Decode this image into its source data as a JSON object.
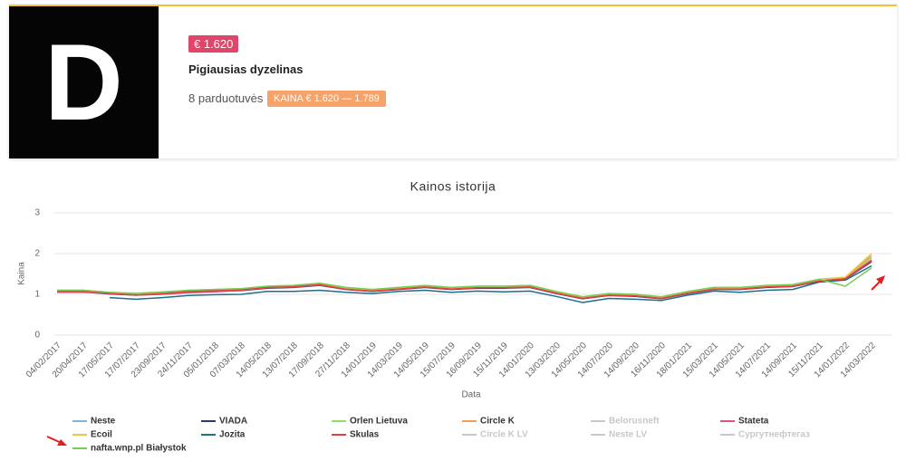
{
  "card": {
    "logo_letter": "D",
    "price_badge": "€ 1.620",
    "title": "Pigiausias dyzelinas",
    "stores": "8 parduotuvės",
    "range_badge": "KAINA € 1.620 — 1.789"
  },
  "chart_data": {
    "type": "line",
    "title": "Kainos istorija",
    "y_label": "Kaina",
    "x_label": "Data",
    "categories": [
      "04/02/2017",
      "20/04/2017",
      "17/05/2017",
      "17/07/2017",
      "23/09/2017",
      "24/11/2017",
      "05/01/2018",
      "07/03/2018",
      "14/05/2018",
      "13/07/2018",
      "17/09/2018",
      "27/11/2018",
      "14/01/2019",
      "14/03/2019",
      "14/05/2019",
      "15/07/2019",
      "16/09/2019",
      "15/11/2019",
      "14/01/2020",
      "13/03/2020",
      "14/05/2020",
      "14/07/2020",
      "14/09/2020",
      "16/11/2020",
      "18/01/2021",
      "15/03/2021",
      "14/05/2021",
      "14/07/2021",
      "14/09/2021",
      "15/11/2021",
      "14/01/2022",
      "14/03/2022"
    ],
    "ylim": [
      0,
      3
    ],
    "yticks": [
      0,
      1,
      2,
      3
    ],
    "grid": true,
    "series": [
      {
        "name": "Neste",
        "color": "#7fb2e0",
        "values": [
          1.07,
          1.07,
          1.02,
          0.99,
          1.02,
          1.07,
          1.09,
          1.11,
          1.17,
          1.19,
          1.24,
          1.14,
          1.09,
          1.14,
          1.19,
          1.14,
          1.17,
          1.17,
          1.19,
          1.04,
          0.91,
          0.99,
          0.97,
          0.91,
          1.04,
          1.14,
          1.14,
          1.19,
          1.21,
          1.34,
          1.39,
          1.84
        ]
      },
      {
        "name": "VIADA",
        "color": "#2b3a67",
        "values": [
          1.06,
          1.06,
          1.01,
          0.98,
          1.01,
          1.05,
          1.07,
          1.09,
          1.15,
          1.17,
          1.22,
          1.12,
          1.07,
          1.12,
          1.17,
          1.12,
          1.15,
          1.15,
          1.17,
          1.02,
          0.89,
          0.97,
          0.95,
          0.89,
          1.02,
          1.12,
          1.12,
          1.17,
          1.19,
          1.32,
          1.37,
          1.8
        ]
      },
      {
        "name": "Orlen Lietuva",
        "color": "#8fdc6a",
        "values": [
          1.1,
          1.1,
          1.05,
          1.03,
          1.06,
          1.1,
          1.12,
          1.14,
          1.2,
          1.22,
          1.27,
          1.17,
          1.12,
          1.17,
          1.22,
          1.17,
          1.2,
          1.2,
          1.22,
          1.07,
          0.94,
          1.02,
          1.0,
          0.94,
          1.07,
          1.17,
          1.17,
          1.22,
          1.24,
          1.37,
          1.42,
          1.9
        ]
      },
      {
        "name": "Circle K",
        "color": "#f0a050",
        "values": [
          1.09,
          1.09,
          1.04,
          1.02,
          1.05,
          1.09,
          1.11,
          1.13,
          1.19,
          1.21,
          1.26,
          1.16,
          1.11,
          1.16,
          1.21,
          1.16,
          1.19,
          1.19,
          1.21,
          1.06,
          0.93,
          1.01,
          0.99,
          0.93,
          1.06,
          1.16,
          1.16,
          1.21,
          1.23,
          1.36,
          1.41,
          1.95
        ]
      },
      {
        "name": "Belorusneft",
        "color": "#c8c8c8",
        "hidden": true
      },
      {
        "name": "Stateta",
        "color": "#e05577",
        "values": [
          1.05,
          1.05,
          1.02,
          0.98,
          1.0,
          1.04,
          1.06,
          1.1,
          1.16,
          1.18,
          1.23,
          1.13,
          1.08,
          1.13,
          1.18,
          1.13,
          1.16,
          1.16,
          1.18,
          1.03,
          0.9,
          0.98,
          0.96,
          0.9,
          1.03,
          1.13,
          1.13,
          1.18,
          1.2,
          1.33,
          1.38,
          1.85
        ]
      },
      {
        "name": "Ecoil",
        "color": "#f2c340",
        "values": [
          1.1,
          1.1,
          1.04,
          1.01,
          1.04,
          1.09,
          1.11,
          1.13,
          1.19,
          1.21,
          1.26,
          1.16,
          1.11,
          1.16,
          1.21,
          1.16,
          1.19,
          1.19,
          1.21,
          1.06,
          0.93,
          1.01,
          0.99,
          0.93,
          1.06,
          1.16,
          1.16,
          1.21,
          1.23,
          1.36,
          1.42,
          2.0
        ]
      },
      {
        "name": "Jozita",
        "color": "#1f6e8c",
        "values": [
          null,
          null,
          0.92,
          0.88,
          0.92,
          0.97,
          0.99,
          1.0,
          1.07,
          1.07,
          1.1,
          1.05,
          1.02,
          1.07,
          1.1,
          1.05,
          1.08,
          1.06,
          1.08,
          0.95,
          0.8,
          0.9,
          0.88,
          0.85,
          0.98,
          1.08,
          1.05,
          1.1,
          1.12,
          1.3,
          1.35,
          1.7
        ]
      },
      {
        "name": "Skulas",
        "color": "#e04040",
        "values": [
          1.07,
          1.07,
          1.03,
          0.98,
          1.02,
          1.07,
          1.09,
          1.11,
          1.17,
          1.19,
          1.24,
          1.12,
          1.08,
          1.13,
          1.18,
          1.13,
          1.16,
          1.16,
          1.18,
          1.03,
          0.9,
          0.98,
          0.96,
          0.9,
          1.03,
          1.13,
          1.13,
          1.18,
          1.2,
          1.33,
          1.38,
          1.82
        ]
      },
      {
        "name": "Circle K LV",
        "color": "#c8c8c8",
        "hidden": true
      },
      {
        "name": "Neste LV",
        "color": "#c8c8c8",
        "hidden": true
      },
      {
        "name": "Сургутнефтегаз",
        "color": "#c8c8c8",
        "hidden": true
      },
      {
        "name": "nafta.wnp.pl Białystok",
        "color": "#77cc55",
        "values": [
          1.1,
          1.1,
          1.05,
          1.02,
          1.05,
          1.1,
          1.12,
          1.14,
          1.2,
          1.22,
          1.27,
          1.17,
          1.12,
          1.17,
          1.22,
          1.17,
          1.2,
          1.2,
          1.22,
          1.07,
          0.94,
          1.02,
          1.0,
          0.94,
          1.07,
          1.17,
          1.17,
          1.22,
          1.24,
          1.37,
          1.2,
          1.65
        ]
      }
    ]
  }
}
